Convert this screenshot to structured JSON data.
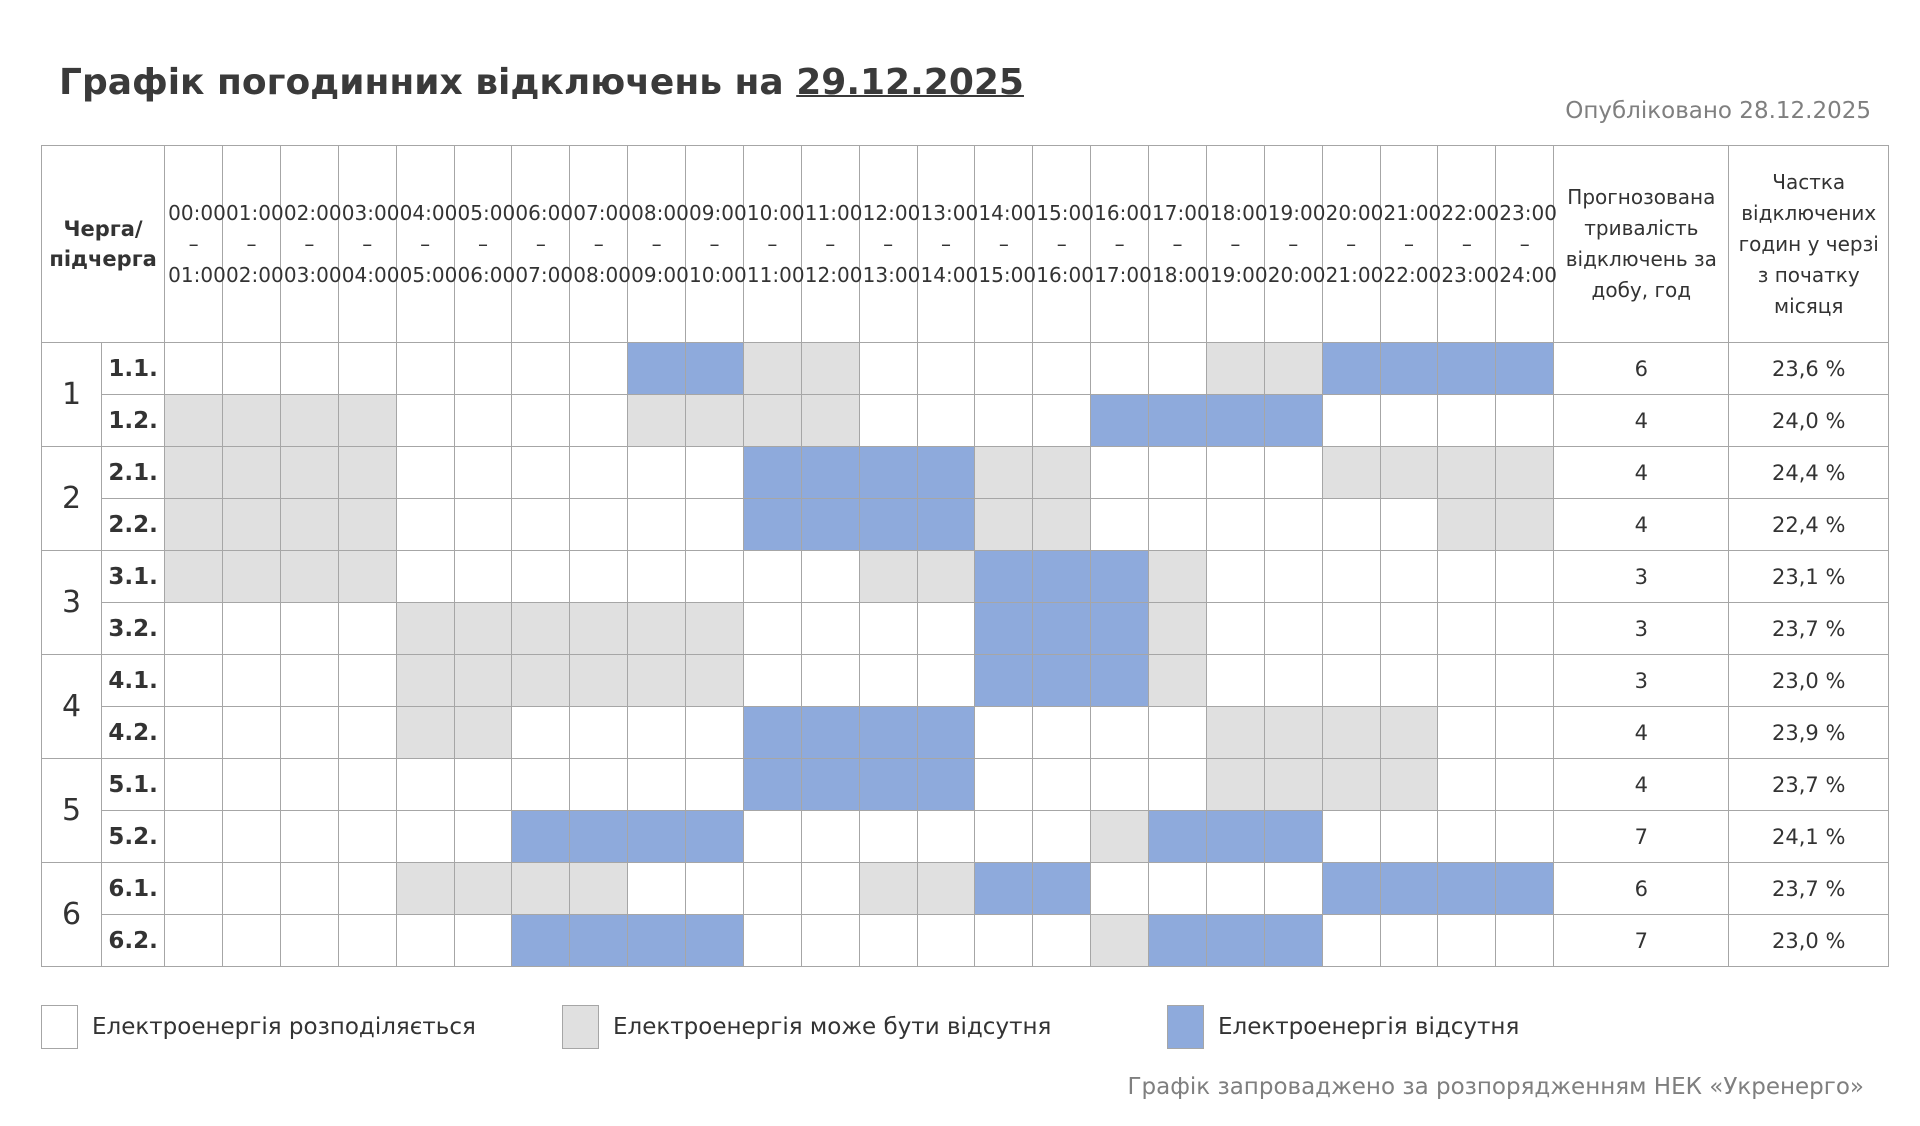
{
  "header": {
    "title": "Графік погодинних відключень на",
    "date": "29.12.2025",
    "published": "Опубліковано 28.12.2025"
  },
  "table": {
    "queue_header": "Черга/ підчерга",
    "hours": [
      "00:00 – 01:00",
      "01:00 – 02:00",
      "02:00 – 03:00",
      "03:00 – 04:00",
      "04:00 – 05:00",
      "05:00 – 06:00",
      "06:00 – 07:00",
      "07:00 – 08:00",
      "08:00 – 09:00",
      "09:00 – 10:00",
      "10:00 – 11:00",
      "11:00 – 12:00",
      "12:00 – 13:00",
      "13:00 – 14:00",
      "14:00 – 15:00",
      "15:00 – 16:00",
      "16:00 – 17:00",
      "17:00 – 18:00",
      "18:00 – 19:00",
      "19:00 – 20:00",
      "20:00 – 21:00",
      "21:00 – 22:00",
      "22:00 – 23:00",
      "23:00 – 24:00"
    ],
    "duration_header": "Прогнозована тривалість відключень за добу, год",
    "share_header": "Частка відключених годин у черзі з початку місяця",
    "queues": [
      {
        "label": "1",
        "rows": [
          {
            "sub": "1.1.",
            "cells": [
              0,
              0,
              0,
              0,
              0,
              0,
              0,
              0,
              2,
              2,
              1,
              1,
              0,
              0,
              0,
              0,
              0,
              0,
              1,
              1,
              2,
              2,
              2,
              2
            ],
            "duration": 6,
            "share": "23,6 %"
          },
          {
            "sub": "1.2.",
            "cells": [
              1,
              1,
              1,
              1,
              0,
              0,
              0,
              0,
              1,
              1,
              1,
              1,
              0,
              0,
              0,
              0,
              2,
              2,
              2,
              2,
              0,
              0,
              0,
              0
            ],
            "duration": 4,
            "share": "24,0 %"
          }
        ]
      },
      {
        "label": "2",
        "rows": [
          {
            "sub": "2.1.",
            "cells": [
              1,
              1,
              1,
              1,
              0,
              0,
              0,
              0,
              0,
              0,
              2,
              2,
              2,
              2,
              1,
              1,
              0,
              0,
              0,
              0,
              1,
              1,
              1,
              1
            ],
            "duration": 4,
            "share": "24,4 %"
          },
          {
            "sub": "2.2.",
            "cells": [
              1,
              1,
              1,
              1,
              0,
              0,
              0,
              0,
              0,
              0,
              2,
              2,
              2,
              2,
              1,
              1,
              0,
              0,
              0,
              0,
              0,
              0,
              1,
              1
            ],
            "duration": 4,
            "share": "22,4 %"
          }
        ]
      },
      {
        "label": "3",
        "rows": [
          {
            "sub": "3.1.",
            "cells": [
              1,
              1,
              1,
              1,
              0,
              0,
              0,
              0,
              0,
              0,
              0,
              0,
              1,
              1,
              2,
              2,
              2,
              1,
              0,
              0,
              0,
              0,
              0,
              0
            ],
            "duration": 3,
            "share": "23,1 %"
          },
          {
            "sub": "3.2.",
            "cells": [
              0,
              0,
              0,
              0,
              1,
              1,
              1,
              1,
              1,
              1,
              0,
              0,
              0,
              0,
              2,
              2,
              2,
              1,
              0,
              0,
              0,
              0,
              0,
              0
            ],
            "duration": 3,
            "share": "23,7 %"
          }
        ]
      },
      {
        "label": "4",
        "rows": [
          {
            "sub": "4.1.",
            "cells": [
              0,
              0,
              0,
              0,
              1,
              1,
              1,
              1,
              1,
              1,
              0,
              0,
              0,
              0,
              2,
              2,
              2,
              1,
              0,
              0,
              0,
              0,
              0,
              0
            ],
            "duration": 3,
            "share": "23,0 %"
          },
          {
            "sub": "4.2.",
            "cells": [
              0,
              0,
              0,
              0,
              1,
              1,
              0,
              0,
              0,
              0,
              2,
              2,
              2,
              2,
              0,
              0,
              0,
              0,
              1,
              1,
              1,
              1,
              0,
              0
            ],
            "duration": 4,
            "share": "23,9 %"
          }
        ]
      },
      {
        "label": "5",
        "rows": [
          {
            "sub": "5.1.",
            "cells": [
              0,
              0,
              0,
              0,
              0,
              0,
              0,
              0,
              0,
              0,
              2,
              2,
              2,
              2,
              0,
              0,
              0,
              0,
              1,
              1,
              1,
              1,
              0,
              0
            ],
            "duration": 4,
            "share": "23,7 %"
          },
          {
            "sub": "5.2.",
            "cells": [
              0,
              0,
              0,
              0,
              0,
              0,
              2,
              2,
              2,
              2,
              0,
              0,
              0,
              0,
              0,
              0,
              1,
              2,
              2,
              2,
              0,
              0,
              0,
              0
            ],
            "duration": 7,
            "share": "24,1 %"
          }
        ]
      },
      {
        "label": "6",
        "rows": [
          {
            "sub": "6.1.",
            "cells": [
              0,
              0,
              0,
              0,
              1,
              1,
              1,
              1,
              0,
              0,
              0,
              0,
              1,
              1,
              2,
              2,
              0,
              0,
              0,
              0,
              2,
              2,
              2,
              2
            ],
            "duration": 6,
            "share": "23,7 %"
          },
          {
            "sub": "6.2.",
            "cells": [
              0,
              0,
              0,
              0,
              0,
              0,
              2,
              2,
              2,
              2,
              0,
              0,
              0,
              0,
              0,
              0,
              1,
              2,
              2,
              2,
              0,
              0,
              0,
              0
            ],
            "duration": 7,
            "share": "23,0 %"
          }
        ]
      }
    ]
  },
  "legend": [
    {
      "label": "Електроенергія розподіляється",
      "color": "#ffffff"
    },
    {
      "label": "Електроенергія може бути відсутня",
      "color": "#e0e0e0"
    },
    {
      "label": "Електроенергія відсутня",
      "color": "#8eaadc"
    }
  ],
  "footer": "Графік запроваджено за розпорядженням НЕК «Укренерго»"
}
